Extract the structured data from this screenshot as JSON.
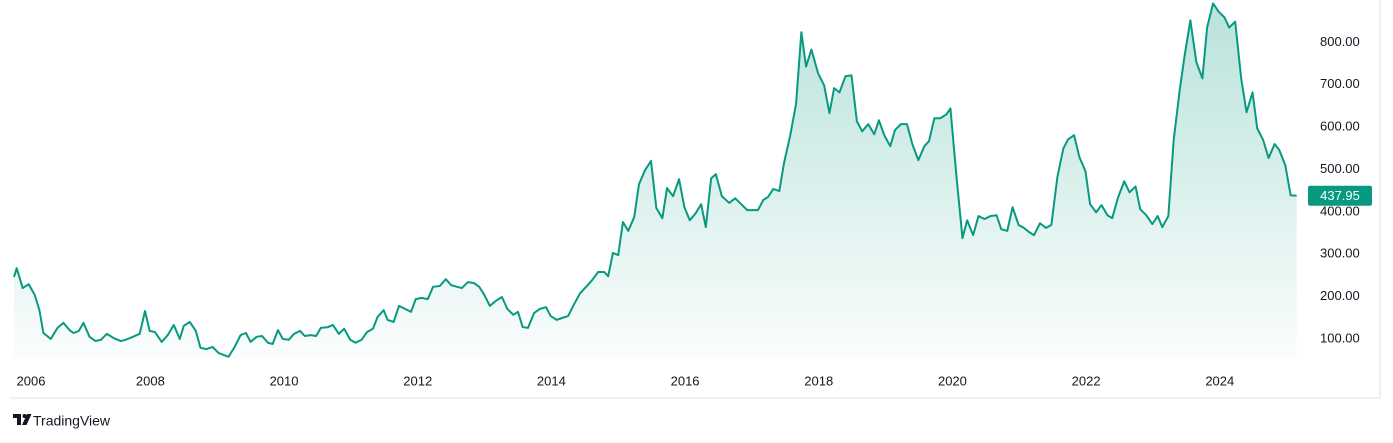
{
  "chart_data": {
    "type": "area",
    "source": "TradingView",
    "color": "#089981",
    "x": [
      2005.96,
      2006.0,
      2006.09,
      2006.18,
      2006.27,
      2006.34,
      2006.4,
      2006.51,
      2006.61,
      2006.7,
      2006.79,
      2006.85,
      2006.93,
      2007.0,
      2007.09,
      2007.18,
      2007.26,
      2007.35,
      2007.45,
      2007.56,
      2007.63,
      2007.74,
      2007.84,
      2007.92,
      2007.99,
      2008.07,
      2008.17,
      2008.26,
      2008.35,
      2008.44,
      2008.5,
      2008.59,
      2008.68,
      2008.75,
      2008.84,
      2008.93,
      2009.02,
      2009.1,
      2009.17,
      2009.26,
      2009.35,
      2009.43,
      2009.5,
      2009.59,
      2009.67,
      2009.76,
      2009.83,
      2009.91,
      2009.98,
      2010.07,
      2010.15,
      2010.24,
      2010.31,
      2010.4,
      2010.48,
      2010.55,
      2010.66,
      2010.73,
      2010.82,
      2010.9,
      2010.99,
      2011.07,
      2011.16,
      2011.24,
      2011.33,
      2011.4,
      2011.49,
      2011.55,
      2011.64,
      2011.72,
      2011.81,
      2011.9,
      2011.97,
      2012.06,
      2012.15,
      2012.23,
      2012.33,
      2012.42,
      2012.5,
      2012.59,
      2012.66,
      2012.75,
      2012.84,
      2012.92,
      2012.99,
      2013.08,
      2013.17,
      2013.26,
      2013.34,
      2013.43,
      2013.5,
      2013.57,
      2013.65,
      2013.74,
      2013.83,
      2013.92,
      2013.99,
      2014.08,
      2014.17,
      2014.25,
      2014.34,
      2014.43,
      2014.52,
      2014.61,
      2014.7,
      2014.79,
      2014.85,
      2014.92,
      2015.0,
      2015.07,
      2015.15,
      2015.24,
      2015.31,
      2015.4,
      2015.49,
      2015.57,
      2015.66,
      2015.73,
      2015.82,
      2015.91,
      2015.99,
      2016.07,
      2016.16,
      2016.24,
      2016.31,
      2016.39,
      2016.46,
      2016.55,
      2016.66,
      2016.75,
      2016.84,
      2016.93,
      2017.02,
      2017.09,
      2017.17,
      2017.24,
      2017.32,
      2017.41,
      2017.48,
      2017.57,
      2017.66,
      2017.74,
      2017.81,
      2017.89,
      2017.99,
      2018.08,
      2018.16,
      2018.23,
      2018.31,
      2018.4,
      2018.49,
      2018.57,
      2018.65,
      2018.74,
      2018.83,
      2018.9,
      2018.98,
      2019.07,
      2019.14,
      2019.23,
      2019.32,
      2019.4,
      2019.49,
      2019.58,
      2019.65,
      2019.73,
      2019.82,
      2019.91,
      2019.97,
      2020.06,
      2020.15,
      2020.22,
      2020.31,
      2020.39,
      2020.48,
      2020.57,
      2020.66,
      2020.73,
      2020.82,
      2020.9,
      2020.99,
      2021.07,
      2021.15,
      2021.22,
      2021.31,
      2021.4,
      2021.48,
      2021.57,
      2021.66,
      2021.73,
      2021.82,
      2021.9,
      2021.99,
      2022.06,
      2022.15,
      2022.23,
      2022.32,
      2022.39,
      2022.48,
      2022.57,
      2022.65,
      2022.74,
      2022.81,
      2022.9,
      2022.99,
      2023.07,
      2023.14,
      2023.23,
      2023.31,
      2023.4,
      2023.47,
      2023.56,
      2023.65,
      2023.74,
      2023.81,
      2023.9,
      2023.98,
      2024.07,
      2024.14,
      2024.23,
      2024.32,
      2024.4,
      2024.49,
      2024.56,
      2024.65,
      2024.73,
      2024.82,
      2024.89,
      2024.98,
      2025.06,
      2025.15
    ],
    "values": [
      246,
      267,
      220,
      229,
      204,
      168,
      114,
      100,
      126,
      138,
      121,
      114,
      119,
      138,
      105,
      95,
      98,
      112,
      102,
      95,
      98,
      105,
      112,
      166,
      119,
      116,
      93,
      109,
      133,
      100,
      131,
      140,
      119,
      79,
      76,
      81,
      67,
      62,
      58,
      81,
      109,
      114,
      93,
      105,
      107,
      91,
      88,
      121,
      100,
      98,
      112,
      119,
      107,
      109,
      107,
      126,
      128,
      133,
      112,
      124,
      98,
      91,
      98,
      116,
      124,
      152,
      168,
      145,
      140,
      178,
      171,
      164,
      194,
      197,
      194,
      223,
      225,
      241,
      227,
      223,
      220,
      234,
      232,
      223,
      206,
      178,
      190,
      199,
      171,
      157,
      164,
      128,
      126,
      161,
      171,
      175,
      154,
      145,
      150,
      154,
      182,
      208,
      223,
      239,
      258,
      258,
      248,
      303,
      298,
      376,
      355,
      388,
      465,
      498,
      520,
      409,
      385,
      456,
      437,
      477,
      411,
      380,
      397,
      418,
      364,
      479,
      489,
      437,
      421,
      432,
      418,
      404,
      404,
      404,
      428,
      435,
      454,
      449,
      515,
      578,
      654,
      824,
      743,
      783,
      727,
      699,
      633,
      692,
      682,
      720,
      722,
      614,
      590,
      607,
      583,
      616,
      581,
      555,
      593,
      607,
      607,
      560,
      522,
      555,
      567,
      621,
      621,
      630,
      644,
      484,
      338,
      380,
      345,
      390,
      383,
      390,
      392,
      359,
      355,
      411,
      369,
      362,
      352,
      345,
      373,
      362,
      369,
      482,
      550,
      571,
      581,
      529,
      496,
      418,
      399,
      416,
      392,
      385,
      435,
      472,
      446,
      460,
      406,
      392,
      371,
      390,
      364,
      390,
      569,
      687,
      765,
      852,
      753,
      715,
      835,
      892,
      873,
      859,
      835,
      849,
      715,
      635,
      682,
      597,
      569,
      527,
      560,
      546,
      510,
      439,
      437.95
    ],
    "xlim": [
      2005.96,
      2025.2
    ],
    "xticks": [
      2006,
      2008,
      2010,
      2012,
      2014,
      2016,
      2018,
      2020,
      2022,
      2024
    ],
    "ylim": [
      55,
      900
    ],
    "yticks": [
      {
        "value": 100,
        "label": "100.00"
      },
      {
        "value": 200,
        "label": "200.00"
      },
      {
        "value": 300,
        "label": "300.00"
      },
      {
        "value": 400,
        "label": "400.00"
      },
      {
        "value": 500,
        "label": "500.00"
      },
      {
        "value": 600,
        "label": "600.00"
      },
      {
        "value": 700,
        "label": "700.00"
      },
      {
        "value": 800,
        "label": "800.00"
      }
    ]
  }
}
